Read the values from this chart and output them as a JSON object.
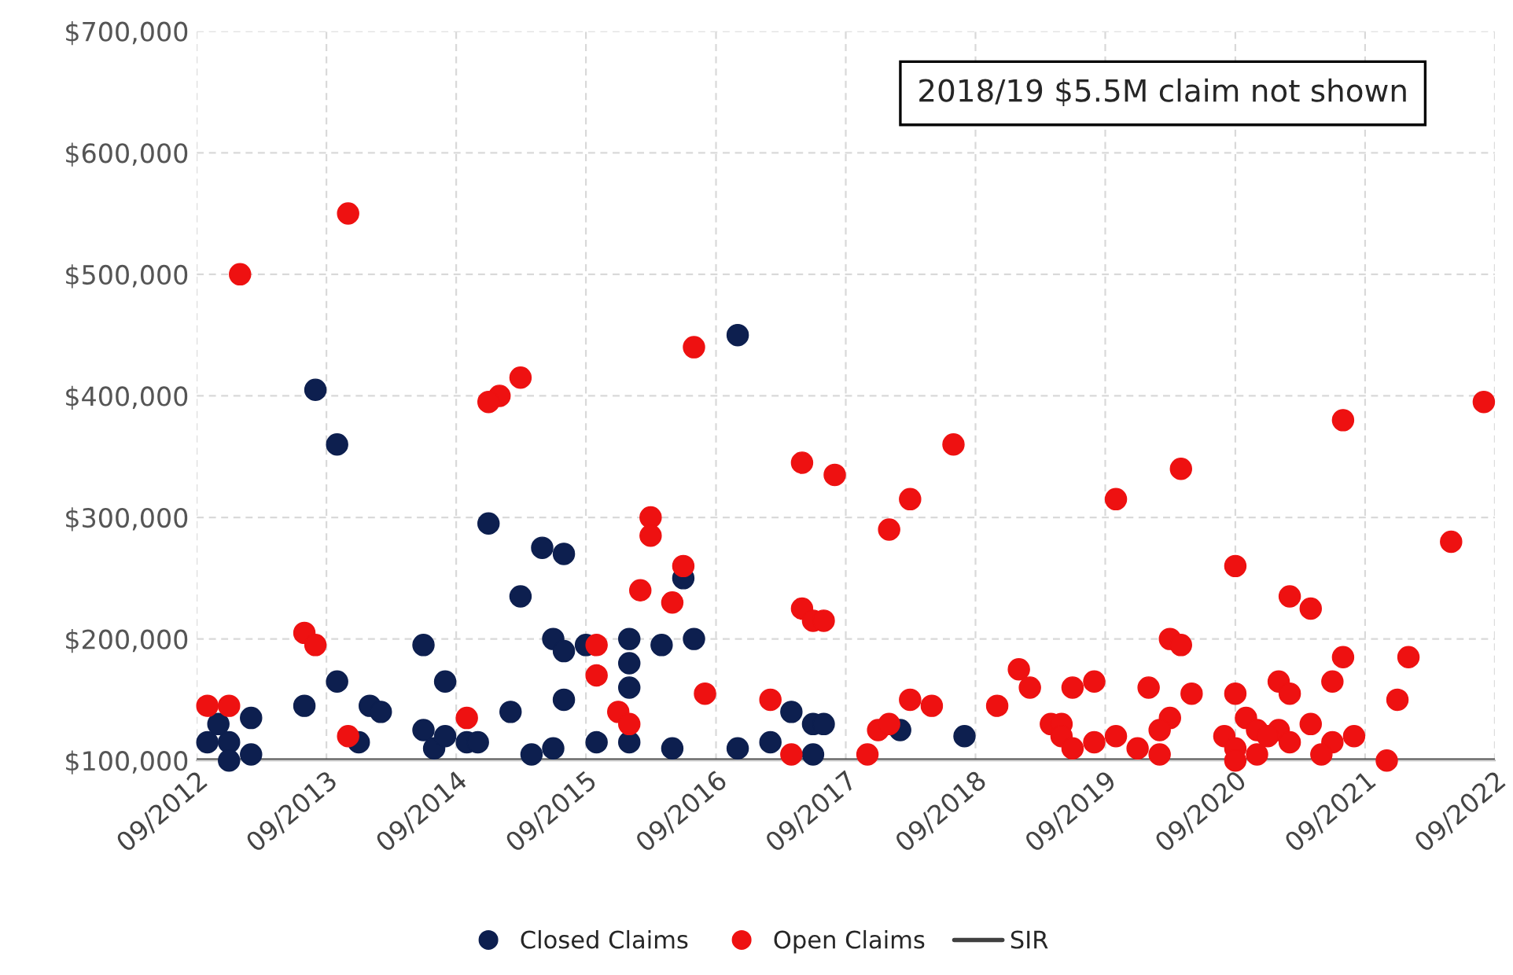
{
  "chart_data": {
    "type": "scatter",
    "xlim": [
      "2012-09",
      "2022-09"
    ],
    "xticks": [
      {
        "value": "2012-09",
        "label": "09/2012"
      },
      {
        "value": "2013-09",
        "label": "09/2013"
      },
      {
        "value": "2014-09",
        "label": "09/2014"
      },
      {
        "value": "2015-09",
        "label": "09/2015"
      },
      {
        "value": "2016-09",
        "label": "09/2016"
      },
      {
        "value": "2017-09",
        "label": "09/2017"
      },
      {
        "value": "2018-09",
        "label": "09/2018"
      },
      {
        "value": "2019-09",
        "label": "09/2019"
      },
      {
        "value": "2020-09",
        "label": "09/2020"
      },
      {
        "value": "2021-09",
        "label": "09/2021"
      },
      {
        "value": "2022-09",
        "label": "09/2022"
      }
    ],
    "ylim": [
      100000,
      700000
    ],
    "yticks": [
      {
        "value": 100000,
        "label": "$100,000"
      },
      {
        "value": 200000,
        "label": "$200,000"
      },
      {
        "value": 300000,
        "label": "$300,000"
      },
      {
        "value": 400000,
        "label": "$400,000"
      },
      {
        "value": 500000,
        "label": "$500,000"
      },
      {
        "value": 600000,
        "label": "$600,000"
      },
      {
        "value": 700000,
        "label": "$700,000"
      }
    ],
    "grid": true,
    "legend": "bottom",
    "marker": "circle",
    "annotations": [
      "2018/19 $5.5M claim not shown"
    ],
    "series": [
      {
        "name": "Closed Claims",
        "color": "#0d1f4f",
        "x": [
          "2013-08",
          "2013-10",
          "2014-12",
          "2015-05",
          "2015-07",
          "2015-03",
          "2014-06",
          "2015-06",
          "2015-07",
          "2015-09",
          "2016-01",
          "2013-10",
          "2014-08",
          "2013-07",
          "2014-01",
          "2014-02",
          "2013-02",
          "2012-11",
          "2012-10",
          "2012-12",
          "2013-02",
          "2012-12",
          "2013-12",
          "2014-06",
          "2014-07",
          "2014-08",
          "2014-10",
          "2014-11",
          "2015-02",
          "2015-04",
          "2015-06",
          "2015-07",
          "2015-10",
          "2016-01",
          "2016-01",
          "2016-01",
          "2016-11",
          "2016-04",
          "2016-07",
          "2016-06",
          "2016-05",
          "2016-11",
          "2017-02",
          "2017-04",
          "2017-06",
          "2017-07",
          "2017-06",
          "2018-02",
          "2018-08"
        ],
        "values": [
          405000,
          360000,
          295000,
          275000,
          270000,
          235000,
          195000,
          200000,
          190000,
          195000,
          200000,
          165000,
          165000,
          145000,
          145000,
          140000,
          135000,
          130000,
          115000,
          115000,
          105000,
          100000,
          115000,
          125000,
          110000,
          120000,
          115000,
          115000,
          140000,
          105000,
          110000,
          150000,
          115000,
          115000,
          180000,
          160000,
          450000,
          195000,
          200000,
          250000,
          110000,
          110000,
          115000,
          140000,
          130000,
          130000,
          105000,
          125000,
          120000
        ]
      },
      {
        "name": "Open Claims",
        "color": "#ee1111",
        "x": [
          "2013-01",
          "2013-11",
          "2015-01",
          "2014-12",
          "2015-03",
          "2016-03",
          "2016-03",
          "2016-02",
          "2013-07",
          "2013-08",
          "2015-10",
          "2015-10",
          "2012-10",
          "2012-12",
          "2014-10",
          "2013-11",
          "2015-12",
          "2016-01",
          "2016-07",
          "2016-06",
          "2016-05",
          "2017-05",
          "2017-08",
          "2018-07",
          "2018-03",
          "2018-01",
          "2017-05",
          "2017-06",
          "2017-07",
          "2016-08",
          "2017-02",
          "2018-03",
          "2018-05",
          "2018-11",
          "2019-01",
          "2019-02",
          "2019-06",
          "2019-08",
          "2017-12",
          "2018-01",
          "2017-04",
          "2017-11",
          "2019-04",
          "2019-05",
          "2019-05",
          "2019-06",
          "2019-08",
          "2019-10",
          "2020-04",
          "2021-07",
          "2022-08",
          "2022-05",
          "2020-09",
          "2021-02",
          "2021-04",
          "2020-03",
          "2020-04",
          "2021-07",
          "2022-01",
          "2020-01",
          "2020-05",
          "2020-09",
          "2021-01",
          "2021-02",
          "2021-06",
          "2021-12",
          "2020-03",
          "2020-02",
          "2021-04",
          "2020-10",
          "2020-11",
          "2021-01",
          "2020-12",
          "2020-08",
          "2019-10",
          "2019-12",
          "2020-02",
          "2020-09",
          "2021-02",
          "2021-06",
          "2021-08",
          "2020-11",
          "2021-05",
          "2021-11",
          "2020-09"
        ],
        "values": [
          500000,
          550000,
          400000,
          395000,
          415000,
          300000,
          285000,
          240000,
          205000,
          195000,
          195000,
          170000,
          145000,
          145000,
          135000,
          120000,
          140000,
          130000,
          440000,
          260000,
          230000,
          345000,
          335000,
          360000,
          315000,
          290000,
          225000,
          215000,
          215000,
          155000,
          150000,
          150000,
          145000,
          145000,
          175000,
          160000,
          160000,
          165000,
          125000,
          130000,
          105000,
          105000,
          130000,
          130000,
          120000,
          110000,
          115000,
          315000,
          340000,
          380000,
          395000,
          280000,
          260000,
          235000,
          225000,
          200000,
          195000,
          185000,
          185000,
          160000,
          155000,
          155000,
          165000,
          155000,
          165000,
          150000,
          135000,
          125000,
          130000,
          135000,
          125000,
          125000,
          120000,
          120000,
          120000,
          110000,
          105000,
          110000,
          115000,
          115000,
          120000,
          105000,
          105000,
          100000,
          100000
        ]
      },
      {
        "name": "SIR",
        "type": "line",
        "marker": "none",
        "color": "#404040",
        "x": [
          "2012-09",
          "2022-09"
        ],
        "values": [
          100000,
          100000
        ]
      }
    ]
  }
}
